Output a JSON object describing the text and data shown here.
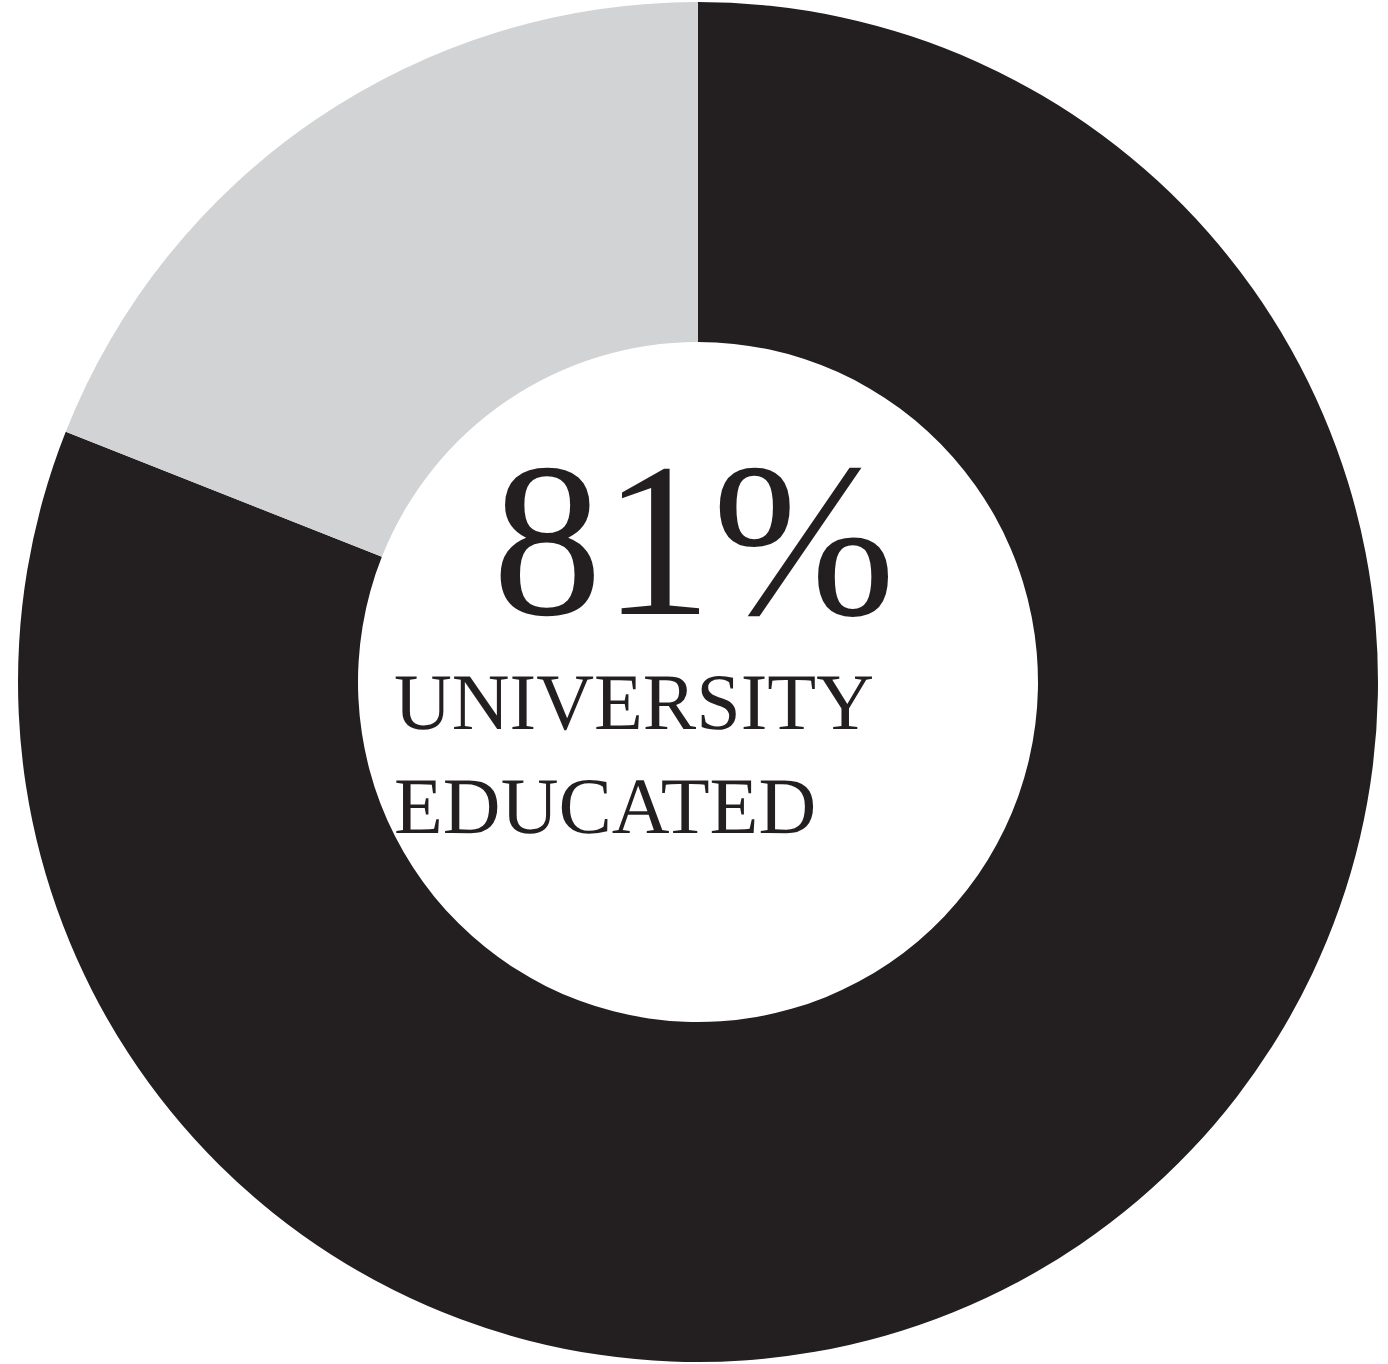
{
  "chart_data": {
    "type": "donut",
    "categories": [
      "UNIVERSITY EDUCATED",
      null
    ],
    "values": [
      81,
      19
    ],
    "value_labels": [
      "81%",
      null
    ],
    "colors": [
      "#231f20",
      "#d1d3d4"
    ],
    "legend": false
  }
}
